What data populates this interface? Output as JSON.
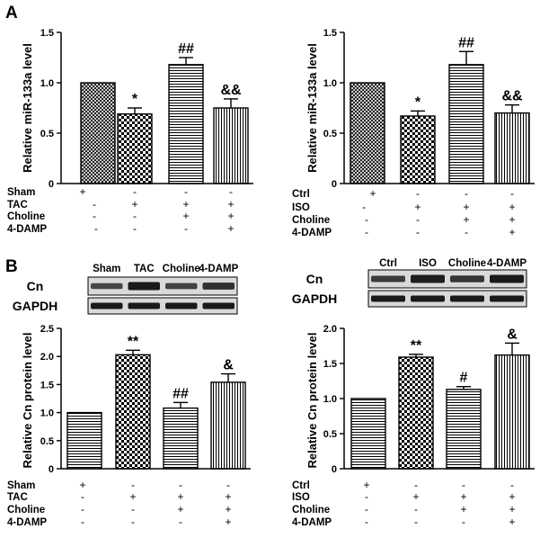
{
  "figure": {
    "panel_labels": [
      "A",
      "B"
    ],
    "colors": {
      "ink": "#000000",
      "paper": "#ffffff",
      "band": "#1a1a1a",
      "band_bg": "#d9d9d9"
    }
  },
  "chart_data": [
    {
      "id": "A_left",
      "type": "bar",
      "ylabel": "Relative miR-133a level",
      "ylim": [
        0,
        1.5
      ],
      "yticks": [
        "0",
        "0.5",
        "1.0",
        "1.5"
      ],
      "categories": [
        "Sham",
        "TAC",
        "Choline",
        "TAC+Choline+4-DAMP"
      ],
      "values": [
        1.0,
        0.69,
        1.18,
        0.75
      ],
      "errors": [
        0,
        0.06,
        0.07,
        0.09
      ],
      "annotations": [
        "",
        "*",
        "##",
        "&&"
      ],
      "patterns": [
        "cross",
        "check",
        "hstripe",
        "vstripe"
      ],
      "conditions": {
        "rows": [
          "Sham",
          "TAC",
          "Choline",
          "4-DAMP"
        ],
        "signs": [
          [
            "+",
            "-",
            "-",
            "-"
          ],
          [
            "-",
            "+",
            "+",
            "+"
          ],
          [
            "-",
            "-",
            "+",
            "+"
          ],
          [
            "-",
            "-",
            "-",
            "+"
          ]
        ]
      }
    },
    {
      "id": "A_right",
      "type": "bar",
      "ylabel": "Relative miR-133a level",
      "ylim": [
        0,
        1.5
      ],
      "yticks": [
        "0",
        "0.5",
        "1.0",
        "1.5"
      ],
      "categories": [
        "Ctrl",
        "ISO",
        "Choline",
        "ISO+Choline+4-DAMP"
      ],
      "values": [
        1.0,
        0.67,
        1.18,
        0.7
      ],
      "errors": [
        0,
        0.05,
        0.13,
        0.08
      ],
      "annotations": [
        "",
        "*",
        "##",
        "&&"
      ],
      "patterns": [
        "cross",
        "check",
        "hstripe",
        "vstripe"
      ],
      "conditions": {
        "rows": [
          "Ctrl",
          "ISO",
          "Choline",
          "4-DAMP"
        ],
        "signs": [
          [
            "+",
            "-",
            "-",
            "-"
          ],
          [
            "-",
            "+",
            "+",
            "+"
          ],
          [
            "-",
            "-",
            "+",
            "+"
          ],
          [
            "-",
            "-",
            "-",
            "+"
          ]
        ]
      }
    },
    {
      "id": "B_left",
      "type": "bar",
      "ylabel": "Relative Cn protein level",
      "ylim": [
        0,
        2.5
      ],
      "yticks": [
        "0",
        "0.5",
        "1.0",
        "1.5",
        "2.0",
        "2.5"
      ],
      "categories": [
        "Sham",
        "TAC",
        "Choline",
        "4-DAMP"
      ],
      "values": [
        1.0,
        2.03,
        1.08,
        1.54
      ],
      "errors": [
        0,
        0.08,
        0.1,
        0.15
      ],
      "annotations": [
        "",
        "**",
        "##",
        "&"
      ],
      "patterns": [
        "hstripe",
        "check",
        "hstripe",
        "vstripe"
      ],
      "conditions": {
        "rows": [
          "Sham",
          "TAC",
          "Choline",
          "4-DAMP"
        ],
        "signs": [
          [
            "+",
            "-",
            "-",
            "-"
          ],
          [
            "-",
            "+",
            "+",
            "+"
          ],
          [
            "-",
            "-",
            "+",
            "+"
          ],
          [
            "-",
            "-",
            "-",
            "+"
          ]
        ]
      },
      "blot": {
        "lane_labels": [
          "Sham",
          "TAC",
          "Choline",
          "4-DAMP"
        ],
        "rows": [
          "Cn",
          "GAPDH"
        ]
      }
    },
    {
      "id": "B_right",
      "type": "bar",
      "ylabel": "Relative Cn protein level",
      "ylim": [
        0,
        2.0
      ],
      "yticks": [
        "0",
        "0.5",
        "1.0",
        "1.5",
        "2.0"
      ],
      "categories": [
        "Ctrl",
        "ISO",
        "Choline",
        "4-DAMP"
      ],
      "values": [
        1.0,
        1.59,
        1.13,
        1.62
      ],
      "errors": [
        0,
        0.04,
        0.04,
        0.17
      ],
      "annotations": [
        "",
        "**",
        "#",
        "&"
      ],
      "patterns": [
        "hstripe",
        "check",
        "hstripe",
        "vstripe"
      ],
      "conditions": {
        "rows": [
          "Ctrl",
          "ISO",
          "Choline",
          "4-DAMP"
        ],
        "signs": [
          [
            "+",
            "-",
            "-",
            "-"
          ],
          [
            "-",
            "+",
            "+",
            "+"
          ],
          [
            "-",
            "-",
            "+",
            "+"
          ],
          [
            "-",
            "-",
            "-",
            "+"
          ]
        ]
      },
      "blot": {
        "lane_labels": [
          "Ctrl",
          "ISO",
          "Choline",
          "4-DAMP"
        ],
        "rows": [
          "Cn",
          "GAPDH"
        ]
      }
    }
  ]
}
